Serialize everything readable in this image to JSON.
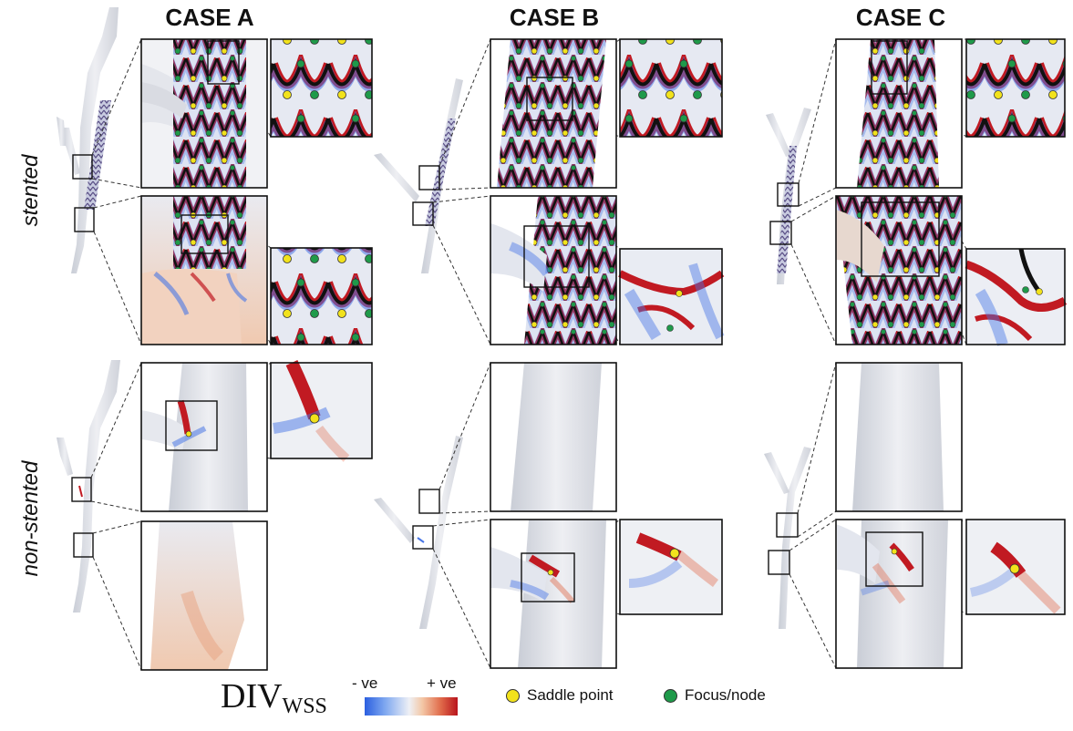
{
  "cases": [
    {
      "title": "CASE A"
    },
    {
      "title": "CASE B"
    },
    {
      "title": "CASE C"
    }
  ],
  "row_labels": {
    "stented": "stented",
    "non_stented": "non-stented"
  },
  "legend": {
    "metric_main": "DIV",
    "metric_sub": "WSS",
    "scale_neg": "- ve",
    "scale_pos": "+ ve",
    "saddle": "Saddle point",
    "focus": "Focus/node"
  },
  "colors": {
    "negative": "#2b5fe0",
    "positive": "#b8141c",
    "neutral": "#eef0f5",
    "saddle": "#f2e21c",
    "focus": "#1f9a4a",
    "stent_strut": "#111111"
  }
}
